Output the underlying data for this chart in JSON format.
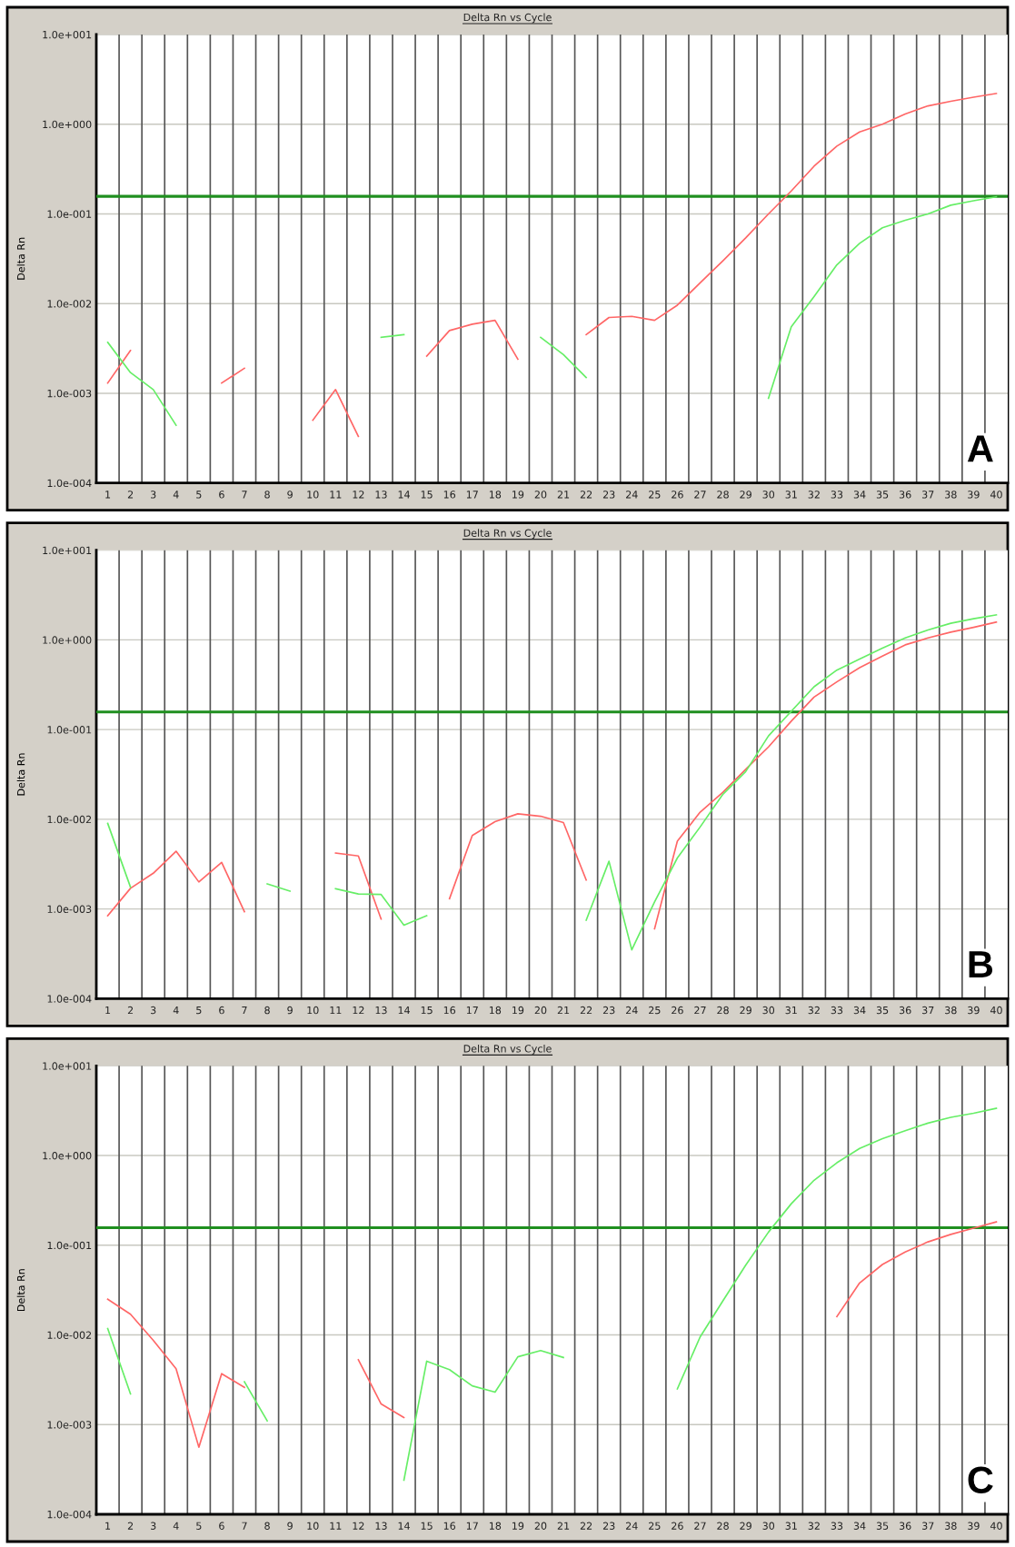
{
  "chart_data": [
    {
      "type": "line",
      "title": "Delta Rn vs Cycle",
      "ylabel": "Delta Rn",
      "log": "y",
      "grid": true,
      "legend": false,
      "marker": "none",
      "line_style": "solid",
      "annotations": [
        "A"
      ],
      "x": [
        1,
        2,
        3,
        4,
        5,
        6,
        7,
        8,
        9,
        10,
        11,
        12,
        13,
        14,
        15,
        16,
        17,
        18,
        19,
        20,
        21,
        22,
        23,
        24,
        25,
        26,
        27,
        28,
        29,
        30,
        31,
        32,
        33,
        34,
        35,
        36,
        37,
        38,
        39,
        40
      ],
      "xlim": [
        0.5,
        40.5
      ],
      "xticks": [
        1,
        2,
        3,
        4,
        5,
        6,
        7,
        8,
        9,
        10,
        11,
        12,
        13,
        14,
        15,
        16,
        17,
        18,
        19,
        20,
        21,
        22,
        23,
        24,
        25,
        26,
        27,
        28,
        29,
        30,
        31,
        32,
        33,
        34,
        35,
        36,
        37,
        38,
        39,
        40,
        {
          "value": 1.5,
          "label": null
        },
        {
          "value": 2.5,
          "label": null
        },
        {
          "value": 3.5,
          "label": null
        },
        {
          "value": 4.5,
          "label": null
        },
        {
          "value": 5.5,
          "label": null
        },
        {
          "value": 6.5,
          "label": null
        },
        {
          "value": 7.5,
          "label": null
        },
        {
          "value": 8.5,
          "label": null
        },
        {
          "value": 9.5,
          "label": null
        },
        {
          "value": 10.5,
          "label": null
        },
        {
          "value": 11.5,
          "label": null
        },
        {
          "value": 12.5,
          "label": null
        },
        {
          "value": 13.5,
          "label": null
        },
        {
          "value": 14.5,
          "label": null
        },
        {
          "value": 15.5,
          "label": null
        },
        {
          "value": 16.5,
          "label": null
        },
        {
          "value": 17.5,
          "label": null
        },
        {
          "value": 18.5,
          "label": null
        },
        {
          "value": 19.5,
          "label": null
        },
        {
          "value": 20.5,
          "label": null
        },
        {
          "value": 21.5,
          "label": null
        },
        {
          "value": 22.5,
          "label": null
        },
        {
          "value": 23.5,
          "label": null
        },
        {
          "value": 24.5,
          "label": null
        },
        {
          "value": 25.5,
          "label": null
        },
        {
          "value": 26.5,
          "label": null
        },
        {
          "value": 27.5,
          "label": null
        },
        {
          "value": 28.5,
          "label": null
        },
        {
          "value": 29.5,
          "label": null
        },
        {
          "value": 30.5,
          "label": null
        },
        {
          "value": 31.5,
          "label": null
        },
        {
          "value": 32.5,
          "label": null
        },
        {
          "value": 33.5,
          "label": null
        },
        {
          "value": 34.5,
          "label": null
        },
        {
          "value": 35.5,
          "label": null
        },
        {
          "value": 36.5,
          "label": null
        },
        {
          "value": 37.5,
          "label": null
        },
        {
          "value": 38.5,
          "label": null
        },
        {
          "value": 39.5,
          "label": null
        }
      ],
      "ylim": [
        0.0001,
        10
      ],
      "yticks": [
        {
          "value": 0.0001,
          "label": "1.0e-004"
        },
        {
          "value": 0.001,
          "label": "1.0e-003"
        },
        {
          "value": 0.01,
          "label": "1.0e-002"
        },
        {
          "value": 0.1,
          "label": "1.0e-001"
        },
        {
          "value": 1,
          "label": "1.0e+000"
        },
        {
          "value": 10,
          "label": "1.0e+001"
        }
      ],
      "ref_lines": [
        {
          "axis": "y",
          "value": 0.157,
          "color": "#1f8f1f"
        }
      ],
      "series": [
        {
          "color": "#ff6666",
          "values": [
            0.0013,
            0.003,
            null,
            null,
            null,
            0.0013,
            0.0019,
            null,
            null,
            0.0005,
            0.0011,
            0.00033,
            null,
            null,
            0.0026,
            0.005,
            0.0059,
            0.0065,
            0.0024,
            null,
            null,
            0.0045,
            0.007,
            0.0072,
            0.0065,
            0.0096,
            0.017,
            0.03,
            0.054,
            0.1,
            0.18,
            0.34,
            0.57,
            0.82,
            1.0,
            1.3,
            1.6,
            1.8,
            2.0,
            2.2
          ]
        },
        {
          "color": "#66ee66",
          "values": [
            0.0037,
            0.0017,
            0.0011,
            0.00044,
            null,
            null,
            null,
            null,
            null,
            null,
            null,
            null,
            0.0042,
            0.0045,
            null,
            null,
            null,
            null,
            null,
            0.0042,
            0.0027,
            0.0015,
            null,
            null,
            null,
            null,
            null,
            null,
            null,
            0.00088,
            0.0055,
            0.012,
            0.027,
            0.047,
            0.07,
            0.085,
            0.1,
            0.125,
            0.14,
            0.155
          ]
        }
      ]
    },
    {
      "type": "line",
      "title": "Delta Rn vs Cycle",
      "ylabel": "Delta Rn",
      "log": "y",
      "grid": true,
      "legend": false,
      "marker": "none",
      "line_style": "solid",
      "annotations": [
        "B"
      ],
      "x": [
        1,
        2,
        3,
        4,
        5,
        6,
        7,
        8,
        9,
        10,
        11,
        12,
        13,
        14,
        15,
        16,
        17,
        18,
        19,
        20,
        21,
        22,
        23,
        24,
        25,
        26,
        27,
        28,
        29,
        30,
        31,
        32,
        33,
        34,
        35,
        36,
        37,
        38,
        39,
        40
      ],
      "xlim": [
        0.5,
        40.5
      ],
      "xticks": [
        1,
        2,
        3,
        4,
        5,
        6,
        7,
        8,
        9,
        10,
        11,
        12,
        13,
        14,
        15,
        16,
        17,
        18,
        19,
        20,
        21,
        22,
        23,
        24,
        25,
        26,
        27,
        28,
        29,
        30,
        31,
        32,
        33,
        34,
        35,
        36,
        37,
        38,
        39,
        40,
        {
          "value": 1.5,
          "label": null
        },
        {
          "value": 2.5,
          "label": null
        },
        {
          "value": 3.5,
          "label": null
        },
        {
          "value": 4.5,
          "label": null
        },
        {
          "value": 5.5,
          "label": null
        },
        {
          "value": 6.5,
          "label": null
        },
        {
          "value": 7.5,
          "label": null
        },
        {
          "value": 8.5,
          "label": null
        },
        {
          "value": 9.5,
          "label": null
        },
        {
          "value": 10.5,
          "label": null
        },
        {
          "value": 11.5,
          "label": null
        },
        {
          "value": 12.5,
          "label": null
        },
        {
          "value": 13.5,
          "label": null
        },
        {
          "value": 14.5,
          "label": null
        },
        {
          "value": 15.5,
          "label": null
        },
        {
          "value": 16.5,
          "label": null
        },
        {
          "value": 17.5,
          "label": null
        },
        {
          "value": 18.5,
          "label": null
        },
        {
          "value": 19.5,
          "label": null
        },
        {
          "value": 20.5,
          "label": null
        },
        {
          "value": 21.5,
          "label": null
        },
        {
          "value": 22.5,
          "label": null
        },
        {
          "value": 23.5,
          "label": null
        },
        {
          "value": 24.5,
          "label": null
        },
        {
          "value": 25.5,
          "label": null
        },
        {
          "value": 26.5,
          "label": null
        },
        {
          "value": 27.5,
          "label": null
        },
        {
          "value": 28.5,
          "label": null
        },
        {
          "value": 29.5,
          "label": null
        },
        {
          "value": 30.5,
          "label": null
        },
        {
          "value": 31.5,
          "label": null
        },
        {
          "value": 32.5,
          "label": null
        },
        {
          "value": 33.5,
          "label": null
        },
        {
          "value": 34.5,
          "label": null
        },
        {
          "value": 35.5,
          "label": null
        },
        {
          "value": 36.5,
          "label": null
        },
        {
          "value": 37.5,
          "label": null
        },
        {
          "value": 38.5,
          "label": null
        },
        {
          "value": 39.5,
          "label": null
        }
      ],
      "ylim": [
        0.0001,
        10
      ],
      "yticks": [
        {
          "value": 0.0001,
          "label": "1.0e-004"
        },
        {
          "value": 0.001,
          "label": "1.0e-003"
        },
        {
          "value": 0.01,
          "label": "1.0e-002"
        },
        {
          "value": 0.1,
          "label": "1.0e-001"
        },
        {
          "value": 1,
          "label": "1.0e+000"
        },
        {
          "value": 10,
          "label": "1.0e+001"
        }
      ],
      "ref_lines": [
        {
          "axis": "y",
          "value": 0.157,
          "color": "#1f8f1f"
        }
      ],
      "series": [
        {
          "color": "#ff6666",
          "values": [
            0.00084,
            0.0017,
            0.0025,
            0.0044,
            0.002,
            0.0033,
            0.00093,
            null,
            null,
            null,
            0.0042,
            0.0039,
            0.00077,
            null,
            null,
            0.0013,
            0.0066,
            0.0094,
            0.0115,
            0.0108,
            0.0092,
            0.0021,
            null,
            null,
            0.0006,
            0.0057,
            0.012,
            0.02,
            0.036,
            0.064,
            0.124,
            0.23,
            0.34,
            0.49,
            0.66,
            0.88,
            1.05,
            1.22,
            1.38,
            1.58
          ]
        },
        {
          "color": "#66ee66",
          "values": [
            0.009,
            0.00175,
            null,
            null,
            null,
            null,
            null,
            0.0019,
            0.00158,
            null,
            0.00168,
            0.00147,
            0.00145,
            0.00066,
            0.00084,
            null,
            null,
            null,
            null,
            null,
            null,
            0.00075,
            0.0034,
            0.00035,
            0.0012,
            0.0037,
            0.0082,
            0.019,
            0.034,
            0.085,
            0.16,
            0.3,
            0.46,
            0.61,
            0.81,
            1.05,
            1.29,
            1.53,
            1.72,
            1.9
          ]
        }
      ]
    },
    {
      "type": "line",
      "title": "Delta Rn vs Cycle",
      "ylabel": "Delta Rn",
      "log": "y",
      "grid": true,
      "legend": false,
      "marker": "none",
      "line_style": "solid",
      "annotations": [
        "C"
      ],
      "x": [
        1,
        2,
        3,
        4,
        5,
        6,
        7,
        8,
        9,
        10,
        11,
        12,
        13,
        14,
        15,
        16,
        17,
        18,
        19,
        20,
        21,
        22,
        23,
        24,
        25,
        26,
        27,
        28,
        29,
        30,
        31,
        32,
        33,
        34,
        35,
        36,
        37,
        38,
        39,
        40
      ],
      "xlim": [
        0.5,
        40.5
      ],
      "xticks": [
        1,
        2,
        3,
        4,
        5,
        6,
        7,
        8,
        9,
        10,
        11,
        12,
        13,
        14,
        15,
        16,
        17,
        18,
        19,
        20,
        21,
        22,
        23,
        24,
        25,
        26,
        27,
        28,
        29,
        30,
        31,
        32,
        33,
        34,
        35,
        36,
        37,
        38,
        39,
        40,
        {
          "value": 1.5,
          "label": null
        },
        {
          "value": 2.5,
          "label": null
        },
        {
          "value": 3.5,
          "label": null
        },
        {
          "value": 4.5,
          "label": null
        },
        {
          "value": 5.5,
          "label": null
        },
        {
          "value": 6.5,
          "label": null
        },
        {
          "value": 7.5,
          "label": null
        },
        {
          "value": 8.5,
          "label": null
        },
        {
          "value": 9.5,
          "label": null
        },
        {
          "value": 10.5,
          "label": null
        },
        {
          "value": 11.5,
          "label": null
        },
        {
          "value": 12.5,
          "label": null
        },
        {
          "value": 13.5,
          "label": null
        },
        {
          "value": 14.5,
          "label": null
        },
        {
          "value": 15.5,
          "label": null
        },
        {
          "value": 16.5,
          "label": null
        },
        {
          "value": 17.5,
          "label": null
        },
        {
          "value": 18.5,
          "label": null
        },
        {
          "value": 19.5,
          "label": null
        },
        {
          "value": 20.5,
          "label": null
        },
        {
          "value": 21.5,
          "label": null
        },
        {
          "value": 22.5,
          "label": null
        },
        {
          "value": 23.5,
          "label": null
        },
        {
          "value": 24.5,
          "label": null
        },
        {
          "value": 25.5,
          "label": null
        },
        {
          "value": 26.5,
          "label": null
        },
        {
          "value": 27.5,
          "label": null
        },
        {
          "value": 28.5,
          "label": null
        },
        {
          "value": 29.5,
          "label": null
        },
        {
          "value": 30.5,
          "label": null
        },
        {
          "value": 31.5,
          "label": null
        },
        {
          "value": 32.5,
          "label": null
        },
        {
          "value": 33.5,
          "label": null
        },
        {
          "value": 34.5,
          "label": null
        },
        {
          "value": 35.5,
          "label": null
        },
        {
          "value": 36.5,
          "label": null
        },
        {
          "value": 37.5,
          "label": null
        },
        {
          "value": 38.5,
          "label": null
        },
        {
          "value": 39.5,
          "label": null
        }
      ],
      "ylim": [
        0.0001,
        10
      ],
      "yticks": [
        {
          "value": 0.0001,
          "label": "1.0e-004"
        },
        {
          "value": 0.001,
          "label": "1.0e-003"
        },
        {
          "value": 0.01,
          "label": "1.0e-002"
        },
        {
          "value": 0.1,
          "label": "1.0e-001"
        },
        {
          "value": 1,
          "label": "1.0e+000"
        },
        {
          "value": 10,
          "label": "1.0e+001"
        }
      ],
      "ref_lines": [
        {
          "axis": "y",
          "value": 0.157,
          "color": "#1f8f1f"
        }
      ],
      "series": [
        {
          "color": "#ff6666",
          "values": [
            0.025,
            0.017,
            0.0087,
            0.0042,
            0.00056,
            0.0037,
            0.0026,
            null,
            null,
            null,
            null,
            0.0053,
            0.0017,
            0.0012,
            null,
            null,
            null,
            null,
            null,
            null,
            null,
            null,
            null,
            null,
            null,
            null,
            null,
            null,
            null,
            null,
            null,
            null,
            0.016,
            0.038,
            0.061,
            0.084,
            0.109,
            0.132,
            0.155,
            0.182
          ]
        },
        {
          "color": "#66ee66",
          "values": [
            0.0118,
            0.0022,
            null,
            null,
            null,
            null,
            0.003,
            0.0011,
            null,
            null,
            null,
            null,
            null,
            0.00024,
            0.0051,
            0.0041,
            0.0027,
            0.0023,
            0.0057,
            0.0067,
            0.0056,
            null,
            null,
            null,
            null,
            0.0025,
            0.0095,
            0.024,
            0.06,
            0.14,
            0.29,
            0.53,
            0.83,
            1.2,
            1.54,
            1.89,
            2.3,
            2.67,
            2.96,
            3.36
          ]
        }
      ]
    }
  ]
}
